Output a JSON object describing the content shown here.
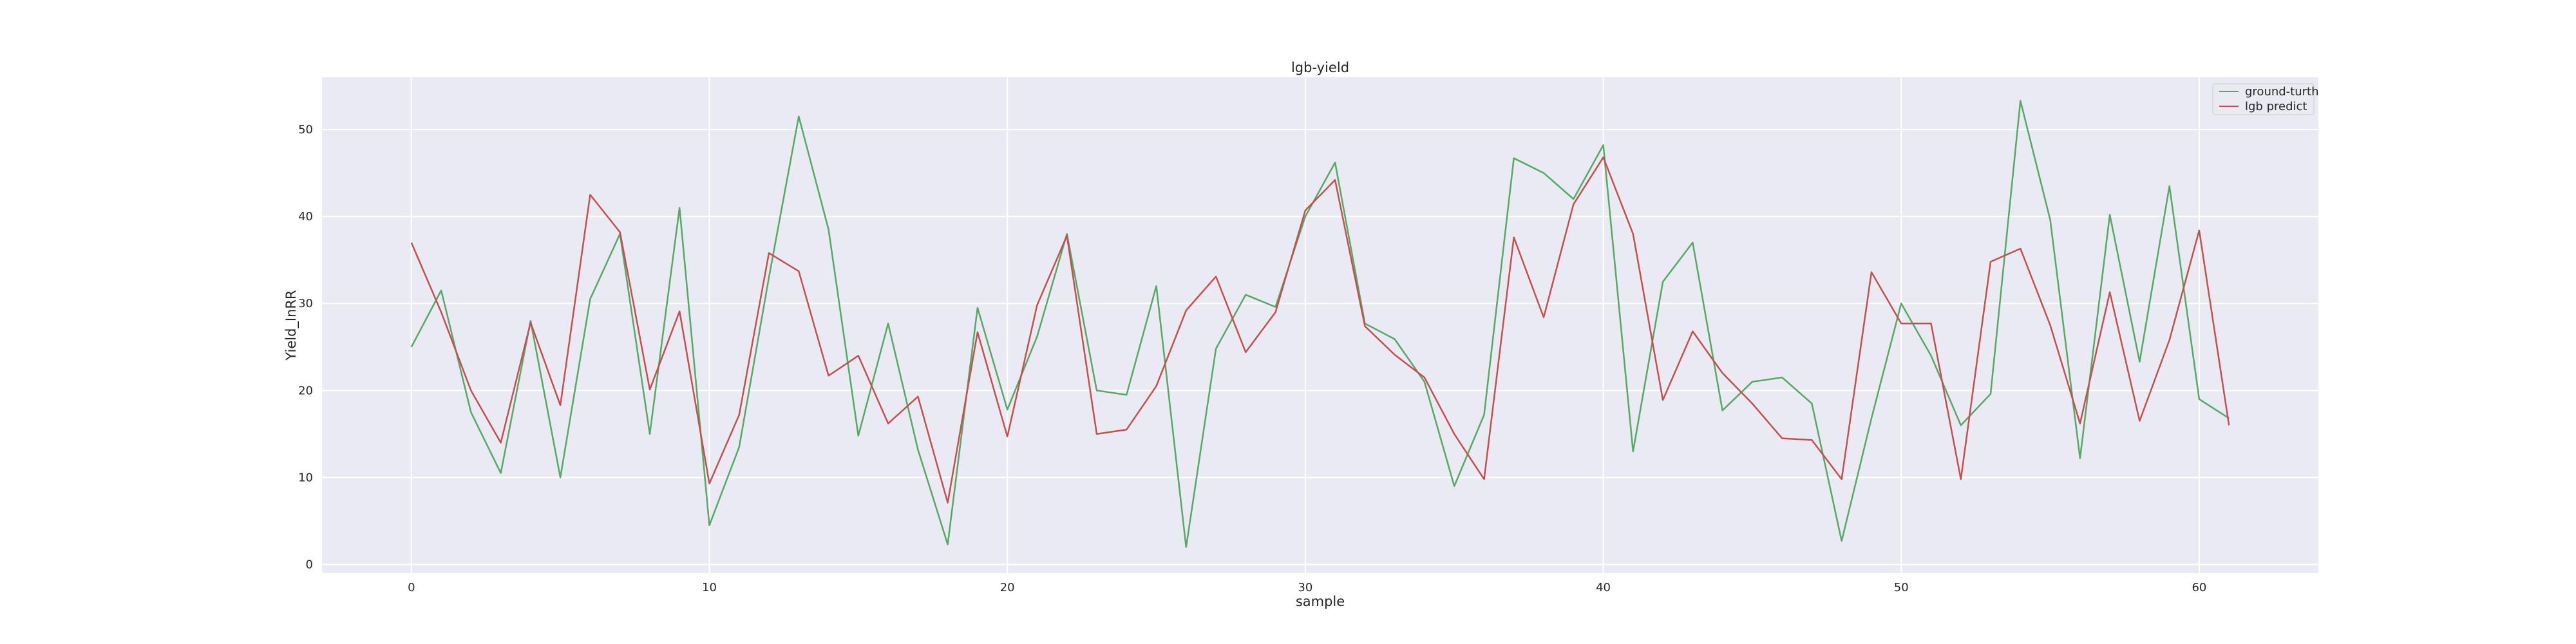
{
  "chart_data": {
    "type": "line",
    "title": "lgb-yield",
    "xlabel": "sample",
    "ylabel": "Yield_InRR",
    "xlim": [
      -3,
      64
    ],
    "ylim": [
      -1,
      56
    ],
    "xticks": [
      0,
      10,
      20,
      30,
      40,
      50,
      60
    ],
    "yticks": [
      0,
      10,
      20,
      30,
      40,
      50
    ],
    "grid": true,
    "legend_position": "top-right",
    "background_color": "#eaeaf2",
    "series": [
      {
        "name": "ground-turth",
        "color": "#55a868",
        "x": [
          0,
          1,
          2,
          3,
          4,
          5,
          6,
          7,
          8,
          9,
          10,
          11,
          12,
          13,
          14,
          15,
          16,
          17,
          18,
          19,
          20,
          21,
          22,
          23,
          24,
          25,
          26,
          27,
          28,
          29,
          30,
          31,
          32,
          33,
          34,
          35,
          36,
          37,
          38,
          39,
          40,
          41,
          42,
          43,
          44,
          45,
          46,
          47,
          48,
          49,
          50,
          51,
          52,
          53,
          54,
          55,
          56,
          57,
          58,
          59,
          60,
          61
        ],
        "values": [
          25,
          31.5,
          17.5,
          10.5,
          28,
          10,
          30.5,
          38,
          15,
          41,
          4.5,
          13.5,
          33,
          51.5,
          38.5,
          14.8,
          27.7,
          13.2,
          2.3,
          29.5,
          17.8,
          26.2,
          38,
          20,
          19.5,
          32,
          2,
          24.8,
          31,
          29.6,
          40,
          46.2,
          27.7,
          25.9,
          21,
          9,
          17.2,
          46.7,
          45,
          42,
          48.2,
          13,
          32.5,
          37,
          17.7,
          21,
          21.5,
          18.5,
          2.7,
          16.8,
          30,
          24,
          16,
          19.6,
          53.3,
          39.6,
          12.2,
          40.2,
          23.3,
          43.5,
          19,
          16.8
        ]
      },
      {
        "name": "lgb predict",
        "color": "#c44e52",
        "x": [
          0,
          1,
          2,
          3,
          4,
          5,
          6,
          7,
          8,
          9,
          10,
          11,
          12,
          13,
          14,
          15,
          16,
          17,
          18,
          19,
          20,
          21,
          22,
          23,
          24,
          25,
          26,
          27,
          28,
          29,
          30,
          31,
          32,
          33,
          34,
          35,
          36,
          37,
          38,
          39,
          40,
          41,
          42,
          43,
          44,
          45,
          46,
          47,
          48,
          49,
          50,
          51,
          52,
          53,
          54,
          55,
          56,
          57,
          58,
          59,
          60,
          61
        ],
        "values": [
          37,
          29,
          20,
          14,
          27.8,
          18.3,
          42.5,
          38.2,
          20.1,
          29.1,
          9.3,
          17.2,
          35.8,
          33.7,
          21.7,
          24,
          16.2,
          19.3,
          7.1,
          26.7,
          14.7,
          29.8,
          37.8,
          15,
          15.5,
          20.5,
          29.2,
          33.1,
          24.4,
          29,
          40.7,
          44.2,
          27.4,
          24.1,
          21.5,
          15,
          9.8,
          37.6,
          28.4,
          41.4,
          46.8,
          38,
          18.9,
          26.8,
          22,
          18.5,
          14.5,
          14.3,
          9.8,
          33.6,
          27.7,
          27.7,
          9.8,
          34.8,
          36.3,
          27.5,
          16.2,
          31.3,
          16.5,
          25.8,
          38.4,
          16
        ]
      }
    ]
  }
}
